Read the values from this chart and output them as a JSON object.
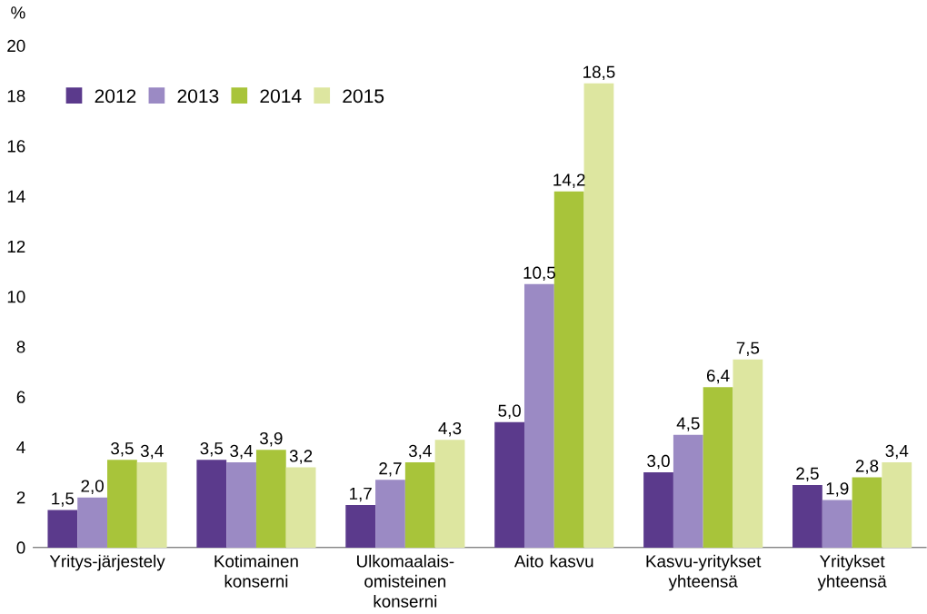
{
  "chart_data": {
    "type": "bar",
    "ylabel": "%",
    "categories": [
      "Yritys-järjestely",
      "Kotimainen konserni",
      "Ulkomaalais-omisteinen konserni",
      "Aito kasvu",
      "Kasvu-yritykset yhteensä",
      "Yritykset yhteensä"
    ],
    "series": [
      {
        "name": "2012",
        "color": "#5b3a8c",
        "values": [
          1.5,
          3.5,
          1.7,
          5.0,
          3.0,
          2.5
        ],
        "value_labels": [
          "1,5",
          "3,5",
          "1,7",
          "5,0",
          "3,0",
          "2,5"
        ]
      },
      {
        "name": "2013",
        "color": "#9b8ac4",
        "values": [
          2.0,
          3.4,
          2.7,
          10.5,
          4.5,
          1.9
        ],
        "value_labels": [
          "2,0",
          "3,4",
          "2,7",
          "10,5",
          "4,5",
          "1,9"
        ]
      },
      {
        "name": "2014",
        "color": "#a8c43a",
        "values": [
          3.5,
          3.9,
          3.4,
          14.2,
          6.4,
          2.8
        ],
        "value_labels": [
          "3,5",
          "3,9",
          "3,4",
          "14,2",
          "6,4",
          "2,8"
        ]
      },
      {
        "name": "2015",
        "color": "#dde6a0",
        "values": [
          3.4,
          3.2,
          4.3,
          18.5,
          7.5,
          3.4
        ],
        "value_labels": [
          "3,4",
          "3,2",
          "4,3",
          "18,5",
          "7,5",
          "3,4"
        ]
      }
    ],
    "ylim": [
      0,
      20
    ],
    "yticks": [
      0,
      2,
      4,
      6,
      8,
      10,
      12,
      14,
      16,
      18,
      20
    ],
    "grid": false,
    "legend": "top left"
  }
}
